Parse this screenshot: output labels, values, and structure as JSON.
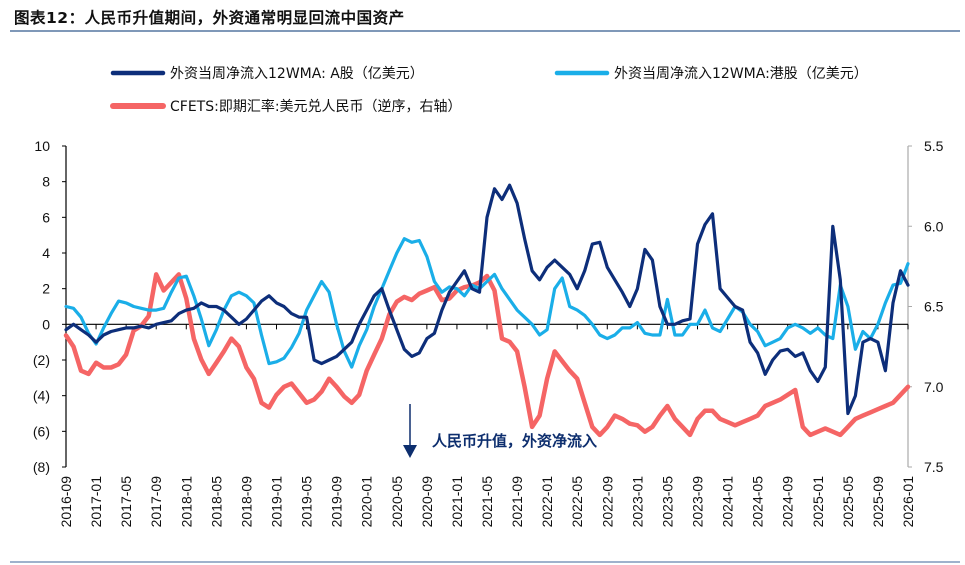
{
  "header": {
    "title": "图表12：人民币升值期间，外资通常明显回流中国资产"
  },
  "chart_data": {
    "type": "line",
    "title": "图表12：人民币升值期间，外资通常明显回流中国资产",
    "xlabel": "",
    "ylabel": "",
    "y2label": "",
    "x_ticks": [
      "2016-09",
      "2017-01",
      "2017-05",
      "2017-09",
      "2018-01",
      "2018-05",
      "2018-09",
      "2019-01",
      "2019-05",
      "2019-09",
      "2020-01",
      "2020-05",
      "2020-09",
      "2021-01",
      "2021-05",
      "2021-09",
      "2022-01",
      "2022-05",
      "2022-09",
      "2023-01",
      "2023-05",
      "2023-09",
      "2024-01",
      "2024-05",
      "2024-09",
      "2025-01",
      "2025-05",
      "2025-09",
      "2026-01"
    ],
    "x_range": [
      "2016-09",
      "2026-01"
    ],
    "y_left": {
      "range": [
        -8,
        10
      ],
      "ticks": [
        10,
        8,
        6,
        4,
        2,
        0,
        -2,
        -4,
        -6,
        -8
      ],
      "tick_labels": [
        "10",
        "8",
        "6",
        "4",
        "2",
        "0",
        "(2)",
        "(4)",
        "(6)",
        "(8)"
      ]
    },
    "y_right": {
      "range": [
        5.5,
        7.5
      ],
      "inverted": true,
      "ticks": [
        5.5,
        6.0,
        6.5,
        7.0,
        7.5
      ],
      "tick_labels": [
        "5.5",
        "6.0",
        "6.5",
        "7.0",
        "7.5"
      ]
    },
    "grid": false,
    "legend_position": "top",
    "legend": [
      {
        "name": "外资当周净流入12WMA: A股（亿美元）",
        "color": "#0d2e7a"
      },
      {
        "name": "外资当周净流入12WMA:港股（亿美元）",
        "color": "#1aaee8"
      },
      {
        "name": "CFETS:即期汇率:美元兑人民币（逆序，右轴）",
        "color": "#f56565"
      }
    ],
    "annotation": {
      "text": "人民币升值，外资净流入",
      "x": "2020-07",
      "arrow": "down"
    },
    "series": [
      {
        "name": "外资当周净流入12WMA: A股（亿美元）",
        "axis": "left",
        "color": "#0d2e7a",
        "x_months": [
          0,
          1,
          2,
          3,
          4,
          5,
          6,
          7,
          8,
          9,
          10,
          11,
          12,
          13,
          14,
          15,
          16,
          17,
          18,
          19,
          20,
          21,
          22,
          23,
          24,
          25,
          26,
          27,
          28,
          29,
          30,
          31,
          32,
          33,
          34,
          35,
          36,
          37,
          38,
          39,
          40,
          41,
          42,
          43,
          44,
          45,
          46,
          47,
          48,
          49,
          50,
          51,
          52,
          53,
          54,
          55,
          56,
          57,
          58,
          59,
          60,
          61,
          62,
          63,
          64,
          65,
          66,
          67,
          68,
          69,
          70,
          71,
          72,
          73,
          74,
          75,
          76,
          77,
          78,
          79,
          80,
          81,
          82,
          83,
          84,
          85,
          86,
          87,
          88,
          89,
          90,
          91,
          92,
          93,
          94,
          95,
          96,
          97,
          98,
          99,
          100,
          101,
          102,
          103,
          104,
          105,
          106,
          107,
          108,
          109,
          110,
          111,
          112
        ],
        "values": [
          -0.3,
          0,
          -0.3,
          -0.6,
          -1.0,
          -0.6,
          -0.4,
          -0.3,
          -0.2,
          -0.2,
          -0.1,
          -0.2,
          0.0,
          0.1,
          0.2,
          0.6,
          0.8,
          0.9,
          1.2,
          1.0,
          1.0,
          0.8,
          0.4,
          0.0,
          0.3,
          0.8,
          1.3,
          1.6,
          1.2,
          1.0,
          0.6,
          0.4,
          0.4,
          -2.0,
          -2.2,
          -2.0,
          -1.8,
          -1.4,
          -1.0,
          0.0,
          0.8,
          1.6,
          2.0,
          0.8,
          -0.3,
          -1.4,
          -1.8,
          -1.6,
          -0.8,
          -0.5,
          0.8,
          1.8,
          2.4,
          3.0,
          2.0,
          1.8,
          6.0,
          7.6,
          7.0,
          7.8,
          6.8,
          4.8,
          3.0,
          2.5,
          3.2,
          3.6,
          3.2,
          2.8,
          2.0,
          3.0,
          4.5,
          4.6,
          3.2,
          2.5,
          1.8,
          1.0,
          2.0,
          4.2,
          3.6,
          1.0,
          0.0,
          0.0,
          0.2,
          0.3,
          4.5,
          5.6,
          6.2,
          2.0,
          1.5,
          1.0,
          0.8,
          -1.0,
          -1.6,
          -2.8,
          -2.0,
          -1.5,
          -1.4,
          -1.8,
          -1.6,
          -2.6,
          -3.2,
          -2.4,
          5.5,
          2.5,
          -5.0,
          -4.0,
          -1.0,
          -0.8,
          -1.0,
          -2.6,
          1.2,
          3.0,
          2.2
        ]
      },
      {
        "name": "外资当周净流入12WMA:港股（亿美元）",
        "axis": "left",
        "color": "#1aaee8",
        "x_months": [
          0,
          1,
          2,
          3,
          4,
          5,
          6,
          7,
          8,
          9,
          10,
          11,
          12,
          13,
          14,
          15,
          16,
          17,
          18,
          19,
          20,
          21,
          22,
          23,
          24,
          25,
          26,
          27,
          28,
          29,
          30,
          31,
          32,
          33,
          34,
          35,
          36,
          37,
          38,
          39,
          40,
          41,
          42,
          43,
          44,
          45,
          46,
          47,
          48,
          49,
          50,
          51,
          52,
          53,
          54,
          55,
          56,
          57,
          58,
          59,
          60,
          61,
          62,
          63,
          64,
          65,
          66,
          67,
          68,
          69,
          70,
          71,
          72,
          73,
          74,
          75,
          76,
          77,
          78,
          79,
          80,
          81,
          82,
          83,
          84,
          85,
          86,
          87,
          88,
          89,
          90,
          91,
          92,
          93,
          94,
          95,
          96,
          97,
          98,
          99,
          100,
          101,
          102,
          103,
          104,
          105,
          106,
          107,
          108,
          109,
          110,
          111,
          112
        ],
        "values": [
          1.0,
          0.9,
          0.4,
          -0.5,
          -1.1,
          -0.2,
          0.6,
          1.3,
          1.2,
          1.0,
          0.9,
          0.8,
          0.8,
          0.9,
          1.8,
          2.6,
          2.7,
          1.6,
          0.3,
          -1.2,
          -0.3,
          0.8,
          1.6,
          1.8,
          1.6,
          1.2,
          -0.6,
          -2.2,
          -2.1,
          -1.9,
          -1.3,
          -0.5,
          0.8,
          1.6,
          2.4,
          1.8,
          0.0,
          -1.5,
          -2.4,
          -1.2,
          -0.3,
          1.0,
          2.0,
          3.0,
          4.0,
          4.8,
          4.6,
          4.7,
          3.8,
          2.4,
          1.8,
          2.1,
          2.0,
          1.6,
          2.2,
          2.0,
          2.4,
          2.8,
          2.0,
          1.4,
          0.8,
          0.4,
          0.0,
          -0.6,
          -0.3,
          2.0,
          2.6,
          1.0,
          0.8,
          0.5,
          0.0,
          -0.6,
          -0.8,
          -0.6,
          -0.2,
          -0.2,
          0.1,
          -0.5,
          -0.6,
          -0.6,
          1.4,
          -0.6,
          -0.6,
          0.0,
          0.0,
          0.8,
          -0.2,
          -0.4,
          0.3,
          1.0,
          0.7,
          0.0,
          -0.4,
          -1.2,
          -1.0,
          -0.8,
          -0.2,
          0.0,
          -0.2,
          -0.5,
          -0.2,
          -0.6,
          -0.8,
          2.2,
          1.0,
          -1.4,
          -0.4,
          -0.8,
          0.0,
          1.2,
          2.2,
          2.3,
          3.4
        ]
      },
      {
        "name": "CFETS:即期汇率:美元兑人民币（逆序，右轴）",
        "axis": "right",
        "color": "#f56565",
        "x_months": [
          0,
          1,
          2,
          3,
          4,
          5,
          6,
          7,
          8,
          9,
          10,
          11,
          12,
          13,
          14,
          15,
          16,
          17,
          18,
          19,
          20,
          21,
          22,
          23,
          24,
          25,
          26,
          27,
          28,
          29,
          30,
          31,
          32,
          33,
          34,
          35,
          36,
          37,
          38,
          39,
          40,
          41,
          42,
          43,
          44,
          45,
          46,
          47,
          48,
          49,
          50,
          51,
          52,
          53,
          54,
          55,
          56,
          57,
          58,
          59,
          60,
          61,
          62,
          63,
          64,
          65,
          66,
          67,
          68,
          69,
          70,
          71,
          72,
          73,
          74,
          75,
          76,
          77,
          78,
          79,
          80,
          81,
          82,
          83,
          84,
          85,
          86,
          87,
          88,
          89,
          90,
          91,
          92,
          93,
          94,
          95,
          96,
          97,
          98,
          99,
          100,
          101,
          102,
          103,
          104,
          105,
          106,
          107,
          108,
          109,
          110,
          111,
          112
        ],
        "values": [
          6.68,
          6.75,
          6.9,
          6.92,
          6.85,
          6.88,
          6.88,
          6.86,
          6.8,
          6.65,
          6.62,
          6.56,
          6.3,
          6.4,
          6.35,
          6.3,
          6.45,
          6.7,
          6.83,
          6.92,
          6.85,
          6.78,
          6.7,
          6.75,
          6.88,
          6.95,
          7.1,
          7.13,
          7.05,
          7.0,
          6.98,
          7.04,
          7.1,
          7.08,
          7.03,
          6.95,
          7.0,
          7.06,
          7.1,
          7.05,
          6.9,
          6.8,
          6.7,
          6.55,
          6.47,
          6.44,
          6.46,
          6.42,
          6.4,
          6.38,
          6.46,
          6.45,
          6.4,
          6.38,
          6.37,
          6.35,
          6.31,
          6.4,
          6.7,
          6.72,
          6.78,
          7.0,
          7.25,
          7.18,
          6.95,
          6.78,
          6.84,
          6.9,
          6.95,
          7.1,
          7.25,
          7.3,
          7.25,
          7.18,
          7.2,
          7.23,
          7.24,
          7.28,
          7.25,
          7.18,
          7.12,
          7.2,
          7.25,
          7.3,
          7.2,
          7.15,
          7.15,
          7.2,
          7.22,
          7.24,
          7.22,
          7.2,
          7.18,
          7.12,
          7.1,
          7.08,
          7.05,
          7.02,
          7.25,
          7.3,
          7.28,
          7.26,
          7.28,
          7.3,
          7.25,
          7.2,
          7.18,
          7.16,
          7.14,
          7.12,
          7.1,
          7.05,
          7.0
        ]
      }
    ]
  }
}
